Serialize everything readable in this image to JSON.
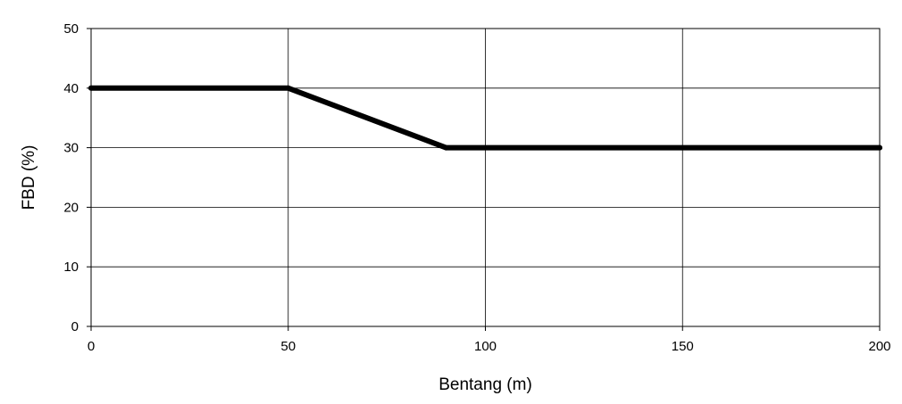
{
  "chart_data": {
    "type": "line",
    "title": "",
    "xlabel": "Bentang (m)",
    "ylabel": "FBD (%)",
    "xlim": [
      0,
      200
    ],
    "ylim": [
      0,
      50
    ],
    "xticks": [
      0,
      50,
      100,
      150,
      200
    ],
    "yticks": [
      0,
      10,
      20,
      30,
      40,
      50
    ],
    "grid": true,
    "series": [
      {
        "x": [
          0,
          50,
          90,
          200
        ],
        "y": [
          40,
          40,
          30,
          30
        ],
        "color": "#000000"
      }
    ]
  }
}
